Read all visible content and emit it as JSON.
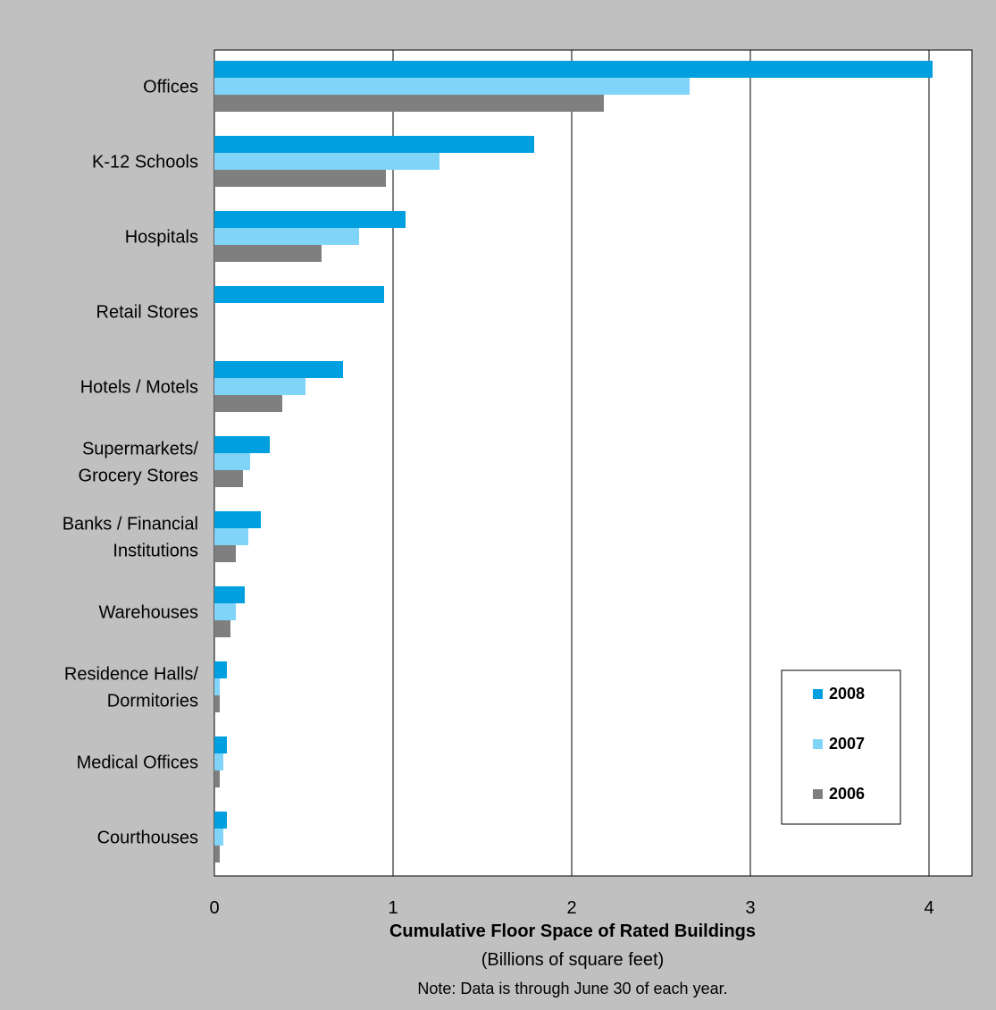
{
  "chart_data": {
    "type": "bar",
    "orientation": "horizontal",
    "categories": [
      [
        "Offices"
      ],
      [
        "K-12 Schools"
      ],
      [
        "Hospitals"
      ],
      [
        "Retail Stores"
      ],
      [
        "Hotels / Motels"
      ],
      [
        "Supermarkets/",
        "Grocery Stores"
      ],
      [
        "Banks / Financial",
        "Institutions"
      ],
      [
        "Warehouses"
      ],
      [
        "Residence Halls/",
        "Dormitories"
      ],
      [
        "Medical Offices"
      ],
      [
        "Courthouses"
      ]
    ],
    "series": [
      {
        "name": "2008",
        "color": "#009fdf",
        "values": [
          4.02,
          1.79,
          1.07,
          0.95,
          0.72,
          0.31,
          0.26,
          0.17,
          0.07,
          0.07,
          0.07
        ]
      },
      {
        "name": "2007",
        "color": "#7fd4f7",
        "values": [
          2.66,
          1.26,
          0.81,
          0.0,
          0.51,
          0.2,
          0.19,
          0.12,
          0.03,
          0.05,
          0.05
        ]
      },
      {
        "name": "2006",
        "color": "#7f7f7f",
        "values": [
          2.18,
          0.96,
          0.6,
          0.0,
          0.38,
          0.16,
          0.12,
          0.09,
          0.03,
          0.03,
          0.03
        ]
      }
    ],
    "xticks": [
      "0",
      "1",
      "2",
      "3",
      "4"
    ],
    "xlim": [
      0,
      4.24
    ],
    "xlabel": "Cumulative Floor Space of Rated Buildings",
    "xlabel_sub": "(Billions of square feet)",
    "note": "Note: Data is through June 30 of each year.",
    "grid": "vertical",
    "legend_position": "bottom-right"
  }
}
